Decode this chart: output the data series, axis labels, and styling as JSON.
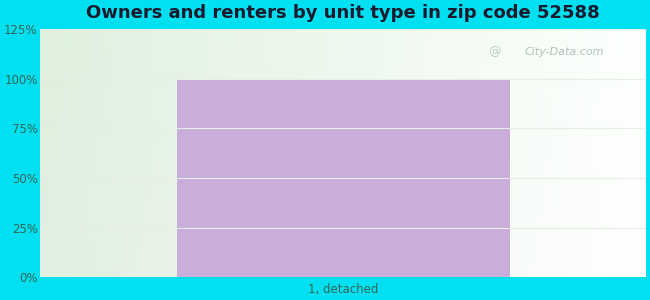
{
  "title": "Owners and renters by unit type in zip code 52588",
  "categories": [
    "1, detached"
  ],
  "values": [
    100
  ],
  "bar_color": "#c8aed8",
  "bar_width": 0.55,
  "ylim": [
    0,
    125
  ],
  "yticks": [
    0,
    25,
    50,
    75,
    100,
    125
  ],
  "ytick_labels": [
    "0%",
    "25%",
    "50%",
    "75%",
    "100%",
    "125%"
  ],
  "outer_bg_color": "#00e0f0",
  "title_fontsize": 13,
  "title_color": "#1a1a2e",
  "tick_label_color": "#336655",
  "xlabel_color": "#336655",
  "watermark_text": "City-Data.com",
  "watermark_color": "#a0b8b0",
  "grid_color": "#e8ede8",
  "grid_alpha": 1.0,
  "grid_linewidth": 0.8
}
